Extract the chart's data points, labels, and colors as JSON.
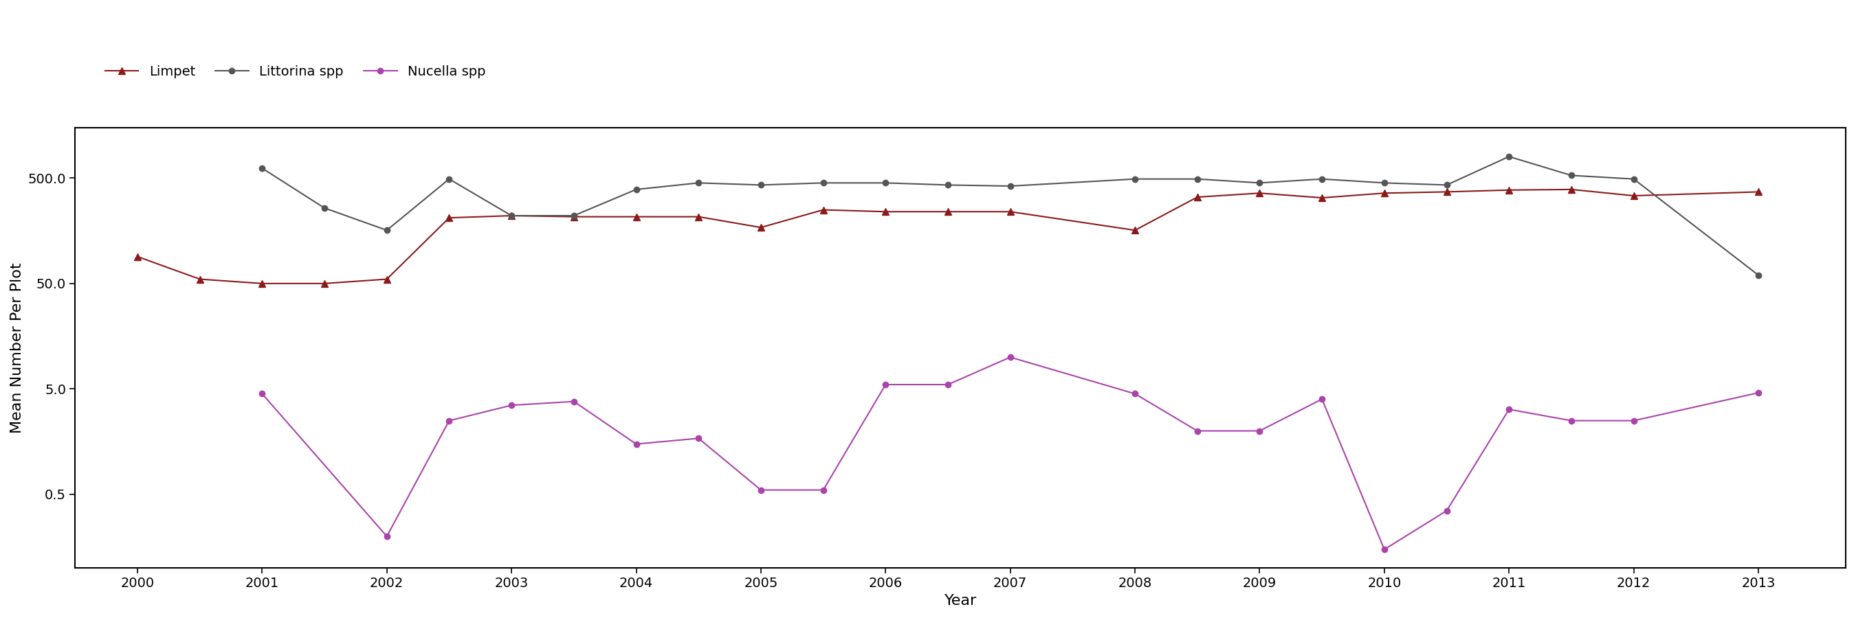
{
  "title": "",
  "xlabel": "Year",
  "ylabel": "Mean Number Per Plot",
  "background_color": "#ffffff",
  "limpet_x": [
    2000.0,
    2000.5,
    2001.0,
    2001.5,
    2002.0,
    2002.5,
    2003.0,
    2003.5,
    2004.0,
    2004.5,
    2005.0,
    2005.5,
    2006.0,
    2006.5,
    2007.0,
    2008.0,
    2008.5,
    2009.0,
    2009.5,
    2010.0,
    2010.5,
    2011.0,
    2011.5,
    2012.0,
    2013.0
  ],
  "limpet_y": [
    90,
    55,
    50,
    50,
    55,
    210,
    220,
    215,
    215,
    215,
    170,
    250,
    240,
    240,
    240,
    160,
    330,
    360,
    325,
    360,
    370,
    385,
    390,
    340,
    370
  ],
  "limpet_color": "#8B1A1A",
  "limpet_marker": "^",
  "littorina_x": [
    2001.0,
    2001.5,
    2002.0,
    2002.5,
    2003.0,
    2003.5,
    2004.0,
    2004.5,
    2005.0,
    2005.5,
    2006.0,
    2006.5,
    2007.0,
    2008.0,
    2008.5,
    2009.0,
    2009.5,
    2010.0,
    2010.5,
    2011.0,
    2011.5,
    2012.0,
    2013.0
  ],
  "littorina_y": [
    620,
    260,
    160,
    490,
    220,
    220,
    390,
    450,
    430,
    450,
    450,
    430,
    420,
    490,
    490,
    450,
    490,
    450,
    430,
    800,
    530,
    490,
    60
  ],
  "littorina_color": "#555555",
  "littorina_marker": "o",
  "nucella_x": [
    2001.0,
    2002.0,
    2002.5,
    2003.0,
    2003.5,
    2004.0,
    2004.5,
    2005.0,
    2005.5,
    2006.0,
    2006.5,
    2007.0,
    2008.0,
    2008.5,
    2009.0,
    2009.5,
    2010.0,
    2010.5,
    2011.0,
    2011.5,
    2012.0,
    2013.0
  ],
  "nucella_y": [
    4.5,
    0.2,
    2.5,
    3.5,
    3.8,
    1.5,
    1.7,
    0.55,
    0.55,
    5.5,
    5.5,
    10.0,
    4.5,
    2.0,
    2.0,
    4.0,
    0.15,
    0.35,
    3.2,
    2.5,
    2.5,
    4.6
  ],
  "nucella_color": "#AA44AA",
  "nucella_marker": "o",
  "yticks": [
    0.5,
    5.0,
    50.0,
    500.0
  ],
  "ytick_labels": [
    "0.5",
    "5.0",
    "50.0",
    "500.0"
  ],
  "ylim": [
    0.1,
    1500
  ],
  "xlim": [
    1999.5,
    2013.7
  ],
  "xticks": [
    2000,
    2001,
    2002,
    2003,
    2004,
    2005,
    2006,
    2007,
    2008,
    2009,
    2010,
    2011,
    2012,
    2013
  ]
}
